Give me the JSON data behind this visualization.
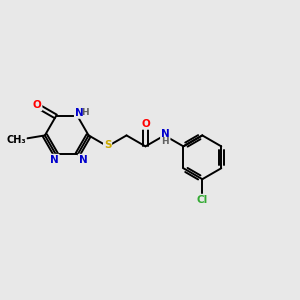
{
  "background_color": "#e8e8e8",
  "bond_color": "#000000",
  "bond_width": 1.4,
  "atom_colors": {
    "C": "#000000",
    "N": "#0000cc",
    "O": "#ff0000",
    "S": "#ccaa00",
    "Cl": "#33aa33",
    "H": "#606060"
  },
  "font_size": 7.5,
  "fig_size": [
    3.0,
    3.0
  ],
  "dpi": 100,
  "xlim": [
    0,
    10
  ],
  "ylim": [
    0,
    10
  ]
}
